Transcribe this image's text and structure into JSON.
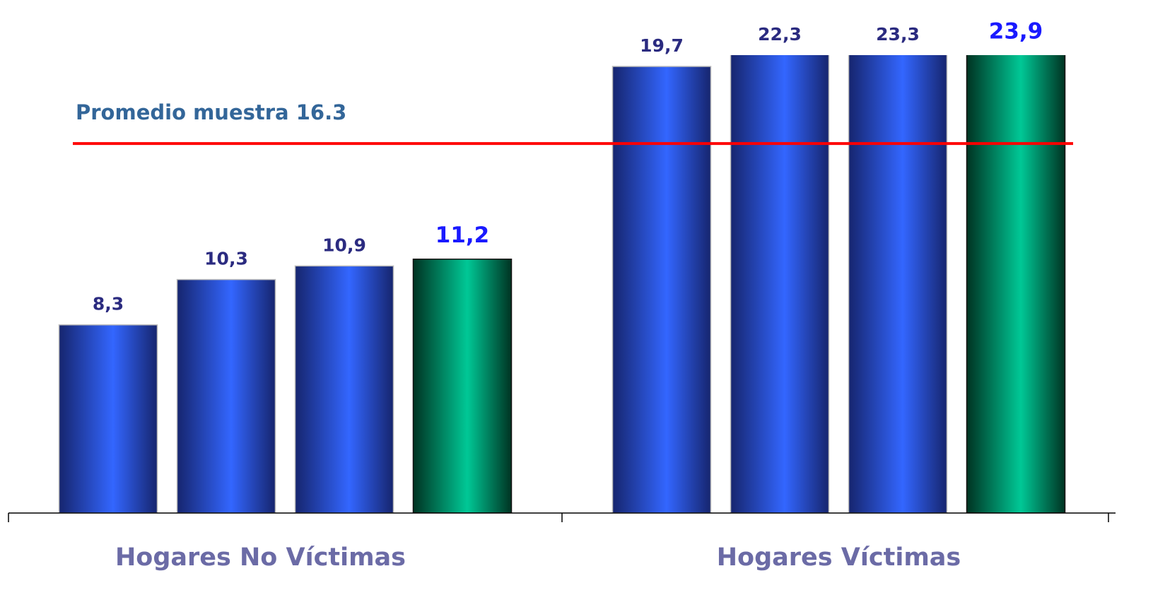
{
  "chart_data": {
    "type": "bar",
    "categories": [
      "Hogares No Víctimas",
      "Hogares Víctimas"
    ],
    "series": [
      {
        "color": "#3366ff",
        "label_color": "#2b2b80",
        "values": [
          8.3,
          19.7
        ],
        "value_labels": [
          "8,3",
          "19,7"
        ]
      },
      {
        "color": "#3366ff",
        "label_color": "#2b2b80",
        "values": [
          10.3,
          22.3
        ],
        "value_labels": [
          "10,3",
          "22,3"
        ]
      },
      {
        "color": "#3366ff",
        "label_color": "#2b2b80",
        "values": [
          10.9,
          23.3
        ],
        "value_labels": [
          "10,9",
          "23,3"
        ]
      },
      {
        "color": "#00c896",
        "label_color": "#1a1aff",
        "values": [
          11.2,
          23.9
        ],
        "value_labels": [
          "11,2",
          "23,9"
        ]
      }
    ],
    "ylim": [
      0,
      20.2
    ],
    "reference_line": {
      "value": 16.3,
      "label": "Promedio muestra 16.3",
      "color": "#ff0000"
    }
  }
}
